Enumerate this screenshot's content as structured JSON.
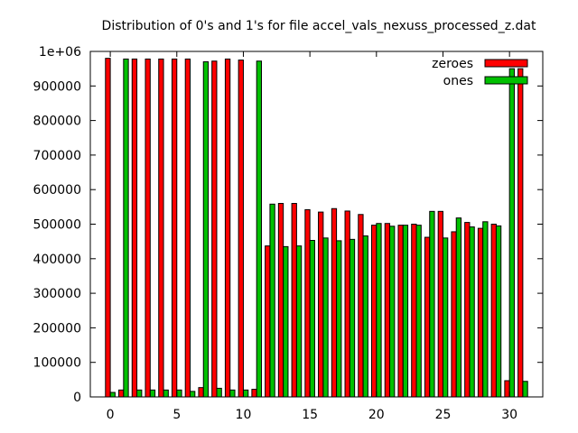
{
  "chart_data": {
    "type": "bar",
    "title": "Distribution of 0's and 1's for file accel_vals_nexuss_processed_z.dat",
    "xlabel": "",
    "ylabel": "",
    "x": [
      0,
      1,
      2,
      3,
      4,
      5,
      6,
      7,
      8,
      9,
      10,
      11,
      12,
      13,
      14,
      15,
      16,
      17,
      18,
      19,
      20,
      21,
      22,
      23,
      24,
      25,
      26,
      27,
      28,
      29,
      30,
      31
    ],
    "xlim": [
      -1.5,
      32.5
    ],
    "ylim": [
      0,
      1000000
    ],
    "x_ticks": [
      0,
      5,
      10,
      15,
      20,
      25,
      30
    ],
    "x_tick_labels": [
      "0",
      "5",
      "10",
      "15",
      "20",
      "25",
      "30"
    ],
    "y_ticks": [
      0,
      100000,
      200000,
      300000,
      400000,
      500000,
      600000,
      700000,
      800000,
      900000,
      1000000
    ],
    "y_tick_labels": [
      "0",
      "100000",
      "200000",
      "300000",
      "400000",
      "500000",
      "600000",
      "700000",
      "800000",
      "900000",
      "1e+06"
    ],
    "grid": false,
    "legend_position": "top-right",
    "series": [
      {
        "name": "zeroes",
        "color": "#ff0000",
        "values": [
          980000,
          20000,
          978000,
          978000,
          978000,
          978000,
          978000,
          27000,
          972000,
          978000,
          975000,
          22000,
          437000,
          560000,
          560000,
          542000,
          535000,
          545000,
          538000,
          528000,
          497000,
          502000,
          497000,
          500000,
          462000,
          537000,
          478000,
          505000,
          488000,
          500000,
          47000,
          950000
        ]
      },
      {
        "name": "ones",
        "color": "#00c000",
        "values": [
          13000,
          978000,
          20000,
          20000,
          20000,
          20000,
          16000,
          970000,
          25000,
          20000,
          20000,
          972000,
          558000,
          435000,
          437000,
          453000,
          460000,
          452000,
          456000,
          466000,
          502000,
          494000,
          497000,
          497000,
          537000,
          460000,
          518000,
          492000,
          507000,
          495000,
          950000,
          45000
        ]
      }
    ]
  }
}
